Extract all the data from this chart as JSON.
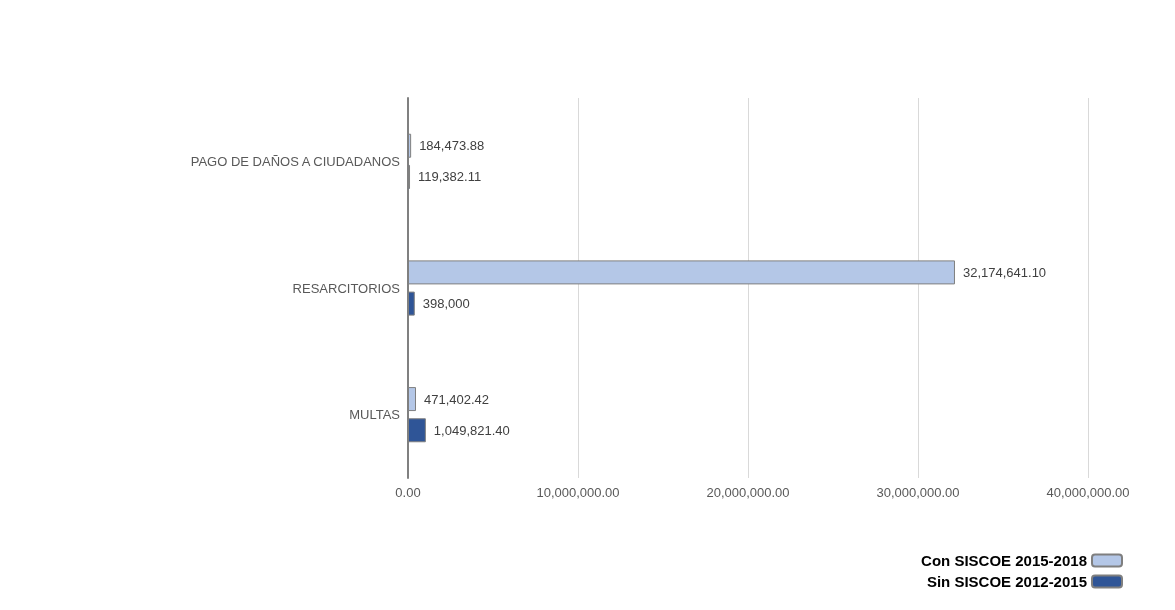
{
  "chart_data": {
    "type": "bar",
    "orientation": "horizontal",
    "categories": [
      "PAGO DE DAÑOS A CIUDADANOS",
      "RESARCITORIOS",
      "MULTAS"
    ],
    "series": [
      {
        "name": "Con SISCOE 2015-2018",
        "color": "#b4c7e7",
        "values": [
          184473.88,
          32174641.1,
          471402.42
        ],
        "value_labels": [
          "184,473.88",
          "32,174,641.10",
          "471,402.42"
        ]
      },
      {
        "name": "Sin SISCOE 2012-2015",
        "color": "#2f5597",
        "values": [
          119382.11,
          398000,
          1049821.4
        ],
        "value_labels": [
          "119,382.11",
          "398,000",
          "1,049,821.40"
        ]
      }
    ],
    "xlim": [
      0,
      40000000
    ],
    "xticks": [
      {
        "value": 0,
        "label": "0.00"
      },
      {
        "value": 10000000,
        "label": "10,000,000.00"
      },
      {
        "value": 20000000,
        "label": "20,000,000.00"
      },
      {
        "value": 30000000,
        "label": "30,000,000.00"
      },
      {
        "value": 40000000,
        "label": "40,000,000.00"
      }
    ],
    "grid": "x",
    "legend": "bottom right"
  }
}
